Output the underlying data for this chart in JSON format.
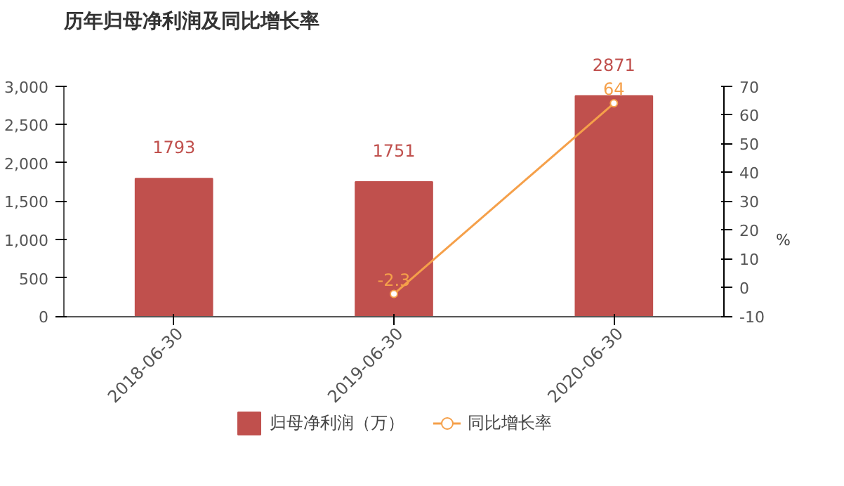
{
  "chart_data": {
    "type": "bar",
    "title": "历年归母净利润及同比增长率",
    "y2label": "%",
    "categories": [
      "2018-06-30",
      "2019-06-30",
      "2020-06-30"
    ],
    "series": [
      {
        "name": "归母净利润（万）",
        "color": "#c0504d",
        "values": [
          1793,
          1751,
          2871
        ]
      },
      {
        "name": "同比增长率",
        "type": "line",
        "axis": "y2",
        "color": "#f5a04a",
        "values": [
          null,
          -2.3,
          64
        ]
      }
    ],
    "ylim": [
      0,
      3000
    ],
    "yticks": [
      0,
      500,
      {
        "value": 1000,
        "label": "1,000"
      },
      {
        "value": 1500,
        "label": "1,500"
      },
      {
        "value": 2000,
        "label": "2,000"
      },
      {
        "value": 2500,
        "label": "2,500"
      },
      {
        "value": 3000,
        "label": "3,000"
      }
    ],
    "y2lim": [
      -10,
      70
    ],
    "y2ticks": [
      -10,
      0,
      10,
      20,
      30,
      40,
      50,
      60,
      70
    ],
    "data_labels": true,
    "legend": "bottom",
    "marker": "circle",
    "grid": false
  }
}
